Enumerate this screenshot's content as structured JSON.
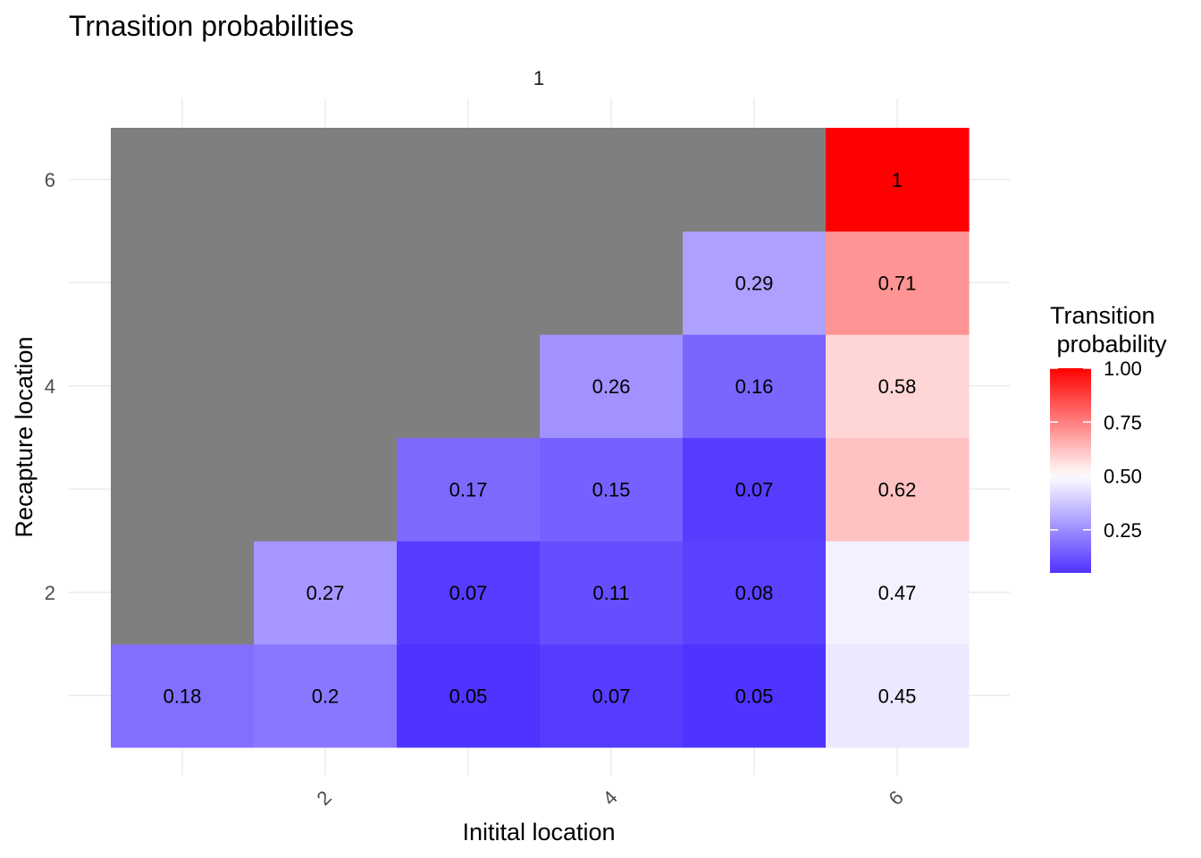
{
  "chart_data": {
    "type": "heatmap",
    "title": "Trnasition probabilities",
    "facet_label": "1",
    "xlabel": "Initital location",
    "ylabel": "Recapture location",
    "x_categories": [
      1,
      2,
      3,
      4,
      5,
      6
    ],
    "y_categories": [
      1,
      2,
      3,
      4,
      5,
      6
    ],
    "x_tick_labels": [
      "2",
      "4",
      "6"
    ],
    "y_tick_labels": [
      "2",
      "4",
      "6"
    ],
    "cells": [
      {
        "x": 1,
        "y": 1,
        "value": 0.18,
        "label": "0.18"
      },
      {
        "x": 2,
        "y": 1,
        "value": 0.2,
        "label": "0.2"
      },
      {
        "x": 3,
        "y": 1,
        "value": 0.05,
        "label": "0.05"
      },
      {
        "x": 4,
        "y": 1,
        "value": 0.07,
        "label": "0.07"
      },
      {
        "x": 5,
        "y": 1,
        "value": 0.05,
        "label": "0.05"
      },
      {
        "x": 6,
        "y": 1,
        "value": 0.45,
        "label": "0.45"
      },
      {
        "x": 1,
        "y": 2,
        "value": null,
        "label": ""
      },
      {
        "x": 2,
        "y": 2,
        "value": 0.27,
        "label": "0.27"
      },
      {
        "x": 3,
        "y": 2,
        "value": 0.07,
        "label": "0.07"
      },
      {
        "x": 4,
        "y": 2,
        "value": 0.11,
        "label": "0.11"
      },
      {
        "x": 5,
        "y": 2,
        "value": 0.08,
        "label": "0.08"
      },
      {
        "x": 6,
        "y": 2,
        "value": 0.47,
        "label": "0.47"
      },
      {
        "x": 1,
        "y": 3,
        "value": null,
        "label": ""
      },
      {
        "x": 2,
        "y": 3,
        "value": null,
        "label": ""
      },
      {
        "x": 3,
        "y": 3,
        "value": 0.17,
        "label": "0.17"
      },
      {
        "x": 4,
        "y": 3,
        "value": 0.15,
        "label": "0.15"
      },
      {
        "x": 5,
        "y": 3,
        "value": 0.07,
        "label": "0.07"
      },
      {
        "x": 6,
        "y": 3,
        "value": 0.62,
        "label": "0.62"
      },
      {
        "x": 1,
        "y": 4,
        "value": null,
        "label": ""
      },
      {
        "x": 2,
        "y": 4,
        "value": null,
        "label": ""
      },
      {
        "x": 3,
        "y": 4,
        "value": null,
        "label": ""
      },
      {
        "x": 4,
        "y": 4,
        "value": 0.26,
        "label": "0.26"
      },
      {
        "x": 5,
        "y": 4,
        "value": 0.16,
        "label": "0.16"
      },
      {
        "x": 6,
        "y": 4,
        "value": 0.58,
        "label": "0.58"
      },
      {
        "x": 1,
        "y": 5,
        "value": null,
        "label": ""
      },
      {
        "x": 2,
        "y": 5,
        "value": null,
        "label": ""
      },
      {
        "x": 3,
        "y": 5,
        "value": null,
        "label": ""
      },
      {
        "x": 4,
        "y": 5,
        "value": null,
        "label": ""
      },
      {
        "x": 5,
        "y": 5,
        "value": 0.29,
        "label": "0.29"
      },
      {
        "x": 6,
        "y": 5,
        "value": 0.71,
        "label": "0.71"
      },
      {
        "x": 1,
        "y": 6,
        "value": null,
        "label": ""
      },
      {
        "x": 2,
        "y": 6,
        "value": null,
        "label": ""
      },
      {
        "x": 3,
        "y": 6,
        "value": null,
        "label": ""
      },
      {
        "x": 4,
        "y": 6,
        "value": null,
        "label": ""
      },
      {
        "x": 5,
        "y": 6,
        "value": null,
        "label": ""
      },
      {
        "x": 6,
        "y": 6,
        "value": 1,
        "label": "1"
      }
    ],
    "legend": {
      "title_lines": [
        "Transition",
        " probability"
      ],
      "ticks": [
        0.25,
        0.5,
        0.75,
        1.0
      ],
      "tick_labels": [
        "0.25",
        "0.50",
        "0.75",
        "1.00"
      ],
      "range": [
        0.05,
        1.0
      ],
      "placement": "right"
    },
    "color_scale": {
      "low": "#3b1cff",
      "mid": "#ffffff",
      "high": "#ff0000",
      "midpoint": 0.5,
      "na_color": "#7f7f7f"
    },
    "grid": true
  }
}
